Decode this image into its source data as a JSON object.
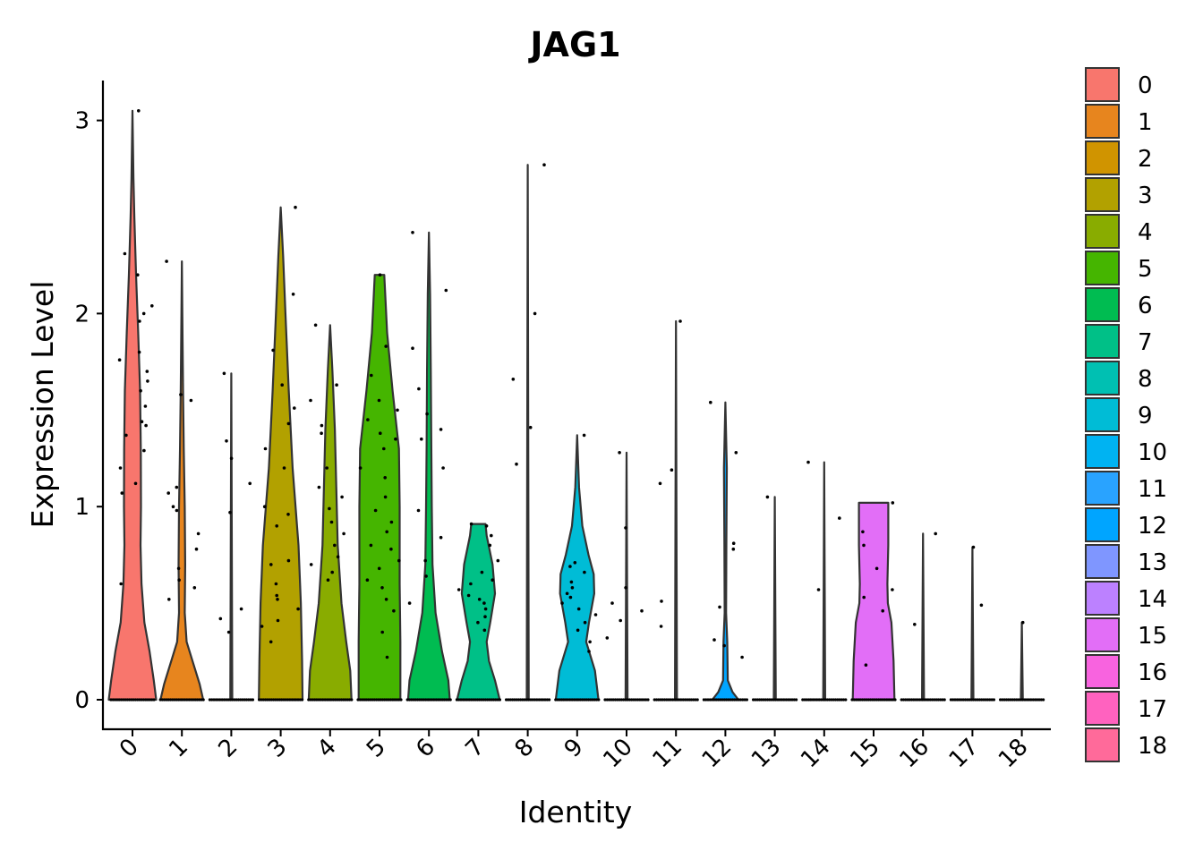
{
  "chart_data": {
    "type": "violin",
    "title": "JAG1",
    "xlabel": "Identity",
    "ylabel": "Expression Level",
    "ylim": [
      -0.15,
      3.2
    ],
    "yticks": [
      0,
      1,
      2,
      3
    ],
    "categories": [
      "0",
      "1",
      "2",
      "3",
      "4",
      "5",
      "6",
      "7",
      "8",
      "9",
      "10",
      "11",
      "12",
      "13",
      "14",
      "15",
      "16",
      "17",
      "18"
    ],
    "colors": [
      "#F8766D",
      "#E7851E",
      "#D09400",
      "#B2A100",
      "#89AC00",
      "#45B500",
      "#00BC51",
      "#00C087",
      "#00C0B2",
      "#00BCD6",
      "#00B3F2",
      "#29A3FF",
      "#00A5FF",
      "#7F96FF",
      "#BC81FF",
      "#E26EF7",
      "#F863DF",
      "#FF62BF",
      "#FF6A9A"
    ],
    "legend_title": "",
    "legend_position": "right",
    "violins": [
      {
        "category": "0",
        "max": 3.05,
        "profile": [
          [
            0,
            1.0
          ],
          [
            0.1,
            0.9
          ],
          [
            0.25,
            0.72
          ],
          [
            0.4,
            0.5
          ],
          [
            0.6,
            0.38
          ],
          [
            0.8,
            0.34
          ],
          [
            1.0,
            0.36
          ],
          [
            1.3,
            0.35
          ],
          [
            1.6,
            0.32
          ],
          [
            1.9,
            0.24
          ],
          [
            2.2,
            0.15
          ],
          [
            2.5,
            0.08
          ],
          [
            2.7,
            0.04
          ],
          [
            3.05,
            0.0
          ]
        ]
      },
      {
        "category": "1",
        "max": 2.27,
        "profile": [
          [
            0,
            0.9
          ],
          [
            0.08,
            0.75
          ],
          [
            0.2,
            0.45
          ],
          [
            0.3,
            0.2
          ],
          [
            0.45,
            0.12
          ],
          [
            0.7,
            0.14
          ],
          [
            1.0,
            0.12
          ],
          [
            1.3,
            0.08
          ],
          [
            1.6,
            0.05
          ],
          [
            2.0,
            0.02
          ],
          [
            2.27,
            0.0
          ]
        ]
      },
      {
        "category": "2",
        "max": 1.69,
        "profile": [
          [
            0,
            0.04
          ],
          [
            1.69,
            0.0
          ]
        ]
      },
      {
        "category": "3",
        "max": 2.55,
        "profile": [
          [
            0,
            0.92
          ],
          [
            0.2,
            0.9
          ],
          [
            0.5,
            0.85
          ],
          [
            0.8,
            0.75
          ],
          [
            1.2,
            0.5
          ],
          [
            1.6,
            0.34
          ],
          [
            2.0,
            0.2
          ],
          [
            2.3,
            0.1
          ],
          [
            2.55,
            0.0
          ]
        ]
      },
      {
        "category": "4",
        "max": 1.94,
        "profile": [
          [
            0,
            0.9
          ],
          [
            0.15,
            0.85
          ],
          [
            0.3,
            0.68
          ],
          [
            0.5,
            0.48
          ],
          [
            0.8,
            0.32
          ],
          [
            1.1,
            0.26
          ],
          [
            1.4,
            0.2
          ],
          [
            1.7,
            0.1
          ],
          [
            1.94,
            0.0
          ]
        ]
      },
      {
        "category": "5",
        "max": 2.2,
        "profile": [
          [
            0,
            0.88
          ],
          [
            0.3,
            0.88
          ],
          [
            0.6,
            0.85
          ],
          [
            1.0,
            0.85
          ],
          [
            1.3,
            0.82
          ],
          [
            1.6,
            0.55
          ],
          [
            1.9,
            0.32
          ],
          [
            2.2,
            0.2
          ]
        ]
      },
      {
        "category": "6",
        "max": 2.42,
        "profile": [
          [
            0,
            0.88
          ],
          [
            0.1,
            0.82
          ],
          [
            0.25,
            0.55
          ],
          [
            0.45,
            0.28
          ],
          [
            0.7,
            0.15
          ],
          [
            1.0,
            0.12
          ],
          [
            1.3,
            0.1
          ],
          [
            1.7,
            0.08
          ],
          [
            2.1,
            0.05
          ],
          [
            2.42,
            0.0
          ]
        ]
      },
      {
        "category": "7",
        "max": 0.91,
        "profile": [
          [
            0,
            0.9
          ],
          [
            0.1,
            0.7
          ],
          [
            0.2,
            0.45
          ],
          [
            0.3,
            0.35
          ],
          [
            0.4,
            0.5
          ],
          [
            0.55,
            0.7
          ],
          [
            0.7,
            0.6
          ],
          [
            0.85,
            0.35
          ],
          [
            0.91,
            0.3
          ]
        ]
      },
      {
        "category": "8",
        "max": 2.77,
        "profile": [
          [
            0,
            0.04
          ],
          [
            2.77,
            0.0
          ]
        ]
      },
      {
        "category": "9",
        "max": 1.37,
        "profile": [
          [
            0,
            0.9
          ],
          [
            0.15,
            0.75
          ],
          [
            0.3,
            0.38
          ],
          [
            0.4,
            0.5
          ],
          [
            0.55,
            0.72
          ],
          [
            0.65,
            0.7
          ],
          [
            0.75,
            0.48
          ],
          [
            0.9,
            0.22
          ],
          [
            1.1,
            0.08
          ],
          [
            1.37,
            0.0
          ]
        ]
      },
      {
        "category": "10",
        "max": 1.28,
        "profile": [
          [
            0,
            0.04
          ],
          [
            1.28,
            0.0
          ]
        ]
      },
      {
        "category": "11",
        "max": 1.96,
        "profile": [
          [
            0,
            0.04
          ],
          [
            1.96,
            0.0
          ]
        ]
      },
      {
        "category": "12",
        "max": 1.54,
        "profile": [
          [
            0,
            0.55
          ],
          [
            0.04,
            0.3
          ],
          [
            0.1,
            0.1
          ],
          [
            0.3,
            0.08
          ],
          [
            0.45,
            0.03
          ],
          [
            0.8,
            0.04
          ],
          [
            1.2,
            0.06
          ],
          [
            1.54,
            0.0
          ]
        ]
      },
      {
        "category": "13",
        "max": 1.05,
        "profile": [
          [
            0,
            0.04
          ],
          [
            1.05,
            0.0
          ]
        ]
      },
      {
        "category": "14",
        "max": 1.23,
        "profile": [
          [
            0,
            0.04
          ],
          [
            1.23,
            0.0
          ]
        ]
      },
      {
        "category": "15",
        "max": 1.02,
        "profile": [
          [
            0,
            0.88
          ],
          [
            0.2,
            0.84
          ],
          [
            0.4,
            0.75
          ],
          [
            0.5,
            0.6
          ],
          [
            0.6,
            0.58
          ],
          [
            0.8,
            0.62
          ],
          [
            1.02,
            0.62
          ]
        ]
      },
      {
        "category": "16",
        "max": 0.86,
        "profile": [
          [
            0,
            0.04
          ],
          [
            0.86,
            0.0
          ]
        ]
      },
      {
        "category": "17",
        "max": 0.79,
        "profile": [
          [
            0,
            0.04
          ],
          [
            0.79,
            0.0
          ]
        ]
      },
      {
        "category": "18",
        "max": 0.4,
        "profile": [
          [
            0,
            0.04
          ],
          [
            0.4,
            0.0
          ]
        ]
      }
    ],
    "points": [
      [
        0,
        3.05
      ],
      [
        0,
        2.31
      ],
      [
        0,
        2.2
      ],
      [
        0,
        2.04
      ],
      [
        0,
        1.96
      ],
      [
        0,
        1.8
      ],
      [
        0,
        1.76
      ],
      [
        0,
        1.65
      ],
      [
        0,
        1.6
      ],
      [
        0,
        1.52
      ],
      [
        0,
        1.44
      ],
      [
        0,
        1.37
      ],
      [
        0,
        1.29
      ],
      [
        0,
        1.2
      ],
      [
        0,
        1.12
      ],
      [
        0,
        1.07
      ],
      [
        0,
        0.6
      ],
      [
        0,
        2.0
      ],
      [
        0,
        1.7
      ],
      [
        0,
        1.42
      ],
      [
        1,
        2.27
      ],
      [
        1,
        1.58
      ],
      [
        1,
        1.55
      ],
      [
        1,
        1.1
      ],
      [
        1,
        1.0
      ],
      [
        1,
        0.98
      ],
      [
        1,
        0.86
      ],
      [
        1,
        0.78
      ],
      [
        1,
        0.68
      ],
      [
        1,
        0.62
      ],
      [
        1,
        0.58
      ],
      [
        1,
        0.52
      ],
      [
        1,
        1.07
      ],
      [
        2,
        1.69
      ],
      [
        2,
        1.34
      ],
      [
        2,
        1.25
      ],
      [
        2,
        1.12
      ],
      [
        2,
        0.97
      ],
      [
        2,
        0.47
      ],
      [
        2,
        0.42
      ],
      [
        2,
        0.35
      ],
      [
        3,
        2.55
      ],
      [
        3,
        2.1
      ],
      [
        3,
        1.81
      ],
      [
        3,
        1.63
      ],
      [
        3,
        1.51
      ],
      [
        3,
        1.43
      ],
      [
        3,
        1.3
      ],
      [
        3,
        1.2
      ],
      [
        3,
        1.0
      ],
      [
        3,
        0.96
      ],
      [
        3,
        0.9
      ],
      [
        3,
        0.72
      ],
      [
        3,
        0.7
      ],
      [
        3,
        0.6
      ],
      [
        3,
        0.54
      ],
      [
        3,
        0.52
      ],
      [
        3,
        0.47
      ],
      [
        3,
        0.41
      ],
      [
        3,
        0.38
      ],
      [
        3,
        0.3
      ],
      [
        4,
        1.94
      ],
      [
        4,
        1.63
      ],
      [
        4,
        1.55
      ],
      [
        4,
        1.42
      ],
      [
        4,
        1.38
      ],
      [
        4,
        1.2
      ],
      [
        4,
        1.1
      ],
      [
        4,
        1.05
      ],
      [
        4,
        0.99
      ],
      [
        4,
        0.92
      ],
      [
        4,
        0.86
      ],
      [
        4,
        0.8
      ],
      [
        4,
        0.74
      ],
      [
        4,
        0.7
      ],
      [
        4,
        0.66
      ],
      [
        4,
        0.62
      ],
      [
        5,
        2.2
      ],
      [
        5,
        1.83
      ],
      [
        5,
        1.68
      ],
      [
        5,
        1.55
      ],
      [
        5,
        1.5
      ],
      [
        5,
        1.45
      ],
      [
        5,
        1.38
      ],
      [
        5,
        1.35
      ],
      [
        5,
        1.3
      ],
      [
        5,
        1.2
      ],
      [
        5,
        1.15
      ],
      [
        5,
        1.05
      ],
      [
        5,
        0.98
      ],
      [
        5,
        0.92
      ],
      [
        5,
        0.87
      ],
      [
        5,
        0.8
      ],
      [
        5,
        0.78
      ],
      [
        5,
        0.72
      ],
      [
        5,
        0.68
      ],
      [
        5,
        0.62
      ],
      [
        5,
        0.58
      ],
      [
        5,
        0.52
      ],
      [
        5,
        0.46
      ],
      [
        5,
        0.35
      ],
      [
        5,
        0.22
      ],
      [
        6,
        2.42
      ],
      [
        6,
        2.12
      ],
      [
        6,
        1.82
      ],
      [
        6,
        1.61
      ],
      [
        6,
        1.48
      ],
      [
        6,
        1.4
      ],
      [
        6,
        1.35
      ],
      [
        6,
        1.2
      ],
      [
        6,
        0.98
      ],
      [
        6,
        0.84
      ],
      [
        6,
        0.72
      ],
      [
        6,
        0.64
      ],
      [
        6,
        0.5
      ],
      [
        7,
        0.91
      ],
      [
        7,
        0.9
      ],
      [
        7,
        0.85
      ],
      [
        7,
        0.8
      ],
      [
        7,
        0.72
      ],
      [
        7,
        0.66
      ],
      [
        7,
        0.62
      ],
      [
        7,
        0.6
      ],
      [
        7,
        0.57
      ],
      [
        7,
        0.54
      ],
      [
        7,
        0.52
      ],
      [
        7,
        0.5
      ],
      [
        7,
        0.47
      ],
      [
        7,
        0.43
      ],
      [
        7,
        0.4
      ],
      [
        7,
        0.36
      ],
      [
        8,
        2.77
      ],
      [
        8,
        2.0
      ],
      [
        8,
        1.66
      ],
      [
        8,
        1.41
      ],
      [
        8,
        1.22
      ],
      [
        9,
        1.37
      ],
      [
        9,
        0.71
      ],
      [
        9,
        0.69
      ],
      [
        9,
        0.66
      ],
      [
        9,
        0.61
      ],
      [
        9,
        0.58
      ],
      [
        9,
        0.55
      ],
      [
        9,
        0.53
      ],
      [
        9,
        0.5
      ],
      [
        9,
        0.47
      ],
      [
        9,
        0.44
      ],
      [
        9,
        0.4
      ],
      [
        9,
        0.36
      ],
      [
        9,
        0.3
      ],
      [
        9,
        0.25
      ],
      [
        10,
        1.28
      ],
      [
        10,
        0.89
      ],
      [
        10,
        0.58
      ],
      [
        10,
        0.5
      ],
      [
        10,
        0.46
      ],
      [
        10,
        0.41
      ],
      [
        10,
        0.32
      ],
      [
        11,
        1.96
      ],
      [
        11,
        1.19
      ],
      [
        11,
        1.12
      ],
      [
        11,
        0.51
      ],
      [
        11,
        0.38
      ],
      [
        12,
        1.54
      ],
      [
        12,
        1.28
      ],
      [
        12,
        0.81
      ],
      [
        12,
        0.78
      ],
      [
        12,
        0.48
      ],
      [
        12,
        0.31
      ],
      [
        12,
        0.28
      ],
      [
        12,
        0.22
      ],
      [
        13,
        1.05
      ],
      [
        14,
        1.23
      ],
      [
        14,
        0.94
      ],
      [
        14,
        0.57
      ],
      [
        15,
        1.02
      ],
      [
        15,
        0.87
      ],
      [
        15,
        0.8
      ],
      [
        15,
        0.68
      ],
      [
        15,
        0.57
      ],
      [
        15,
        0.53
      ],
      [
        15,
        0.46
      ],
      [
        15,
        0.18
      ],
      [
        16,
        0.86
      ],
      [
        16,
        0.39
      ],
      [
        17,
        0.79
      ],
      [
        17,
        0.49
      ],
      [
        18,
        0.4
      ]
    ]
  }
}
